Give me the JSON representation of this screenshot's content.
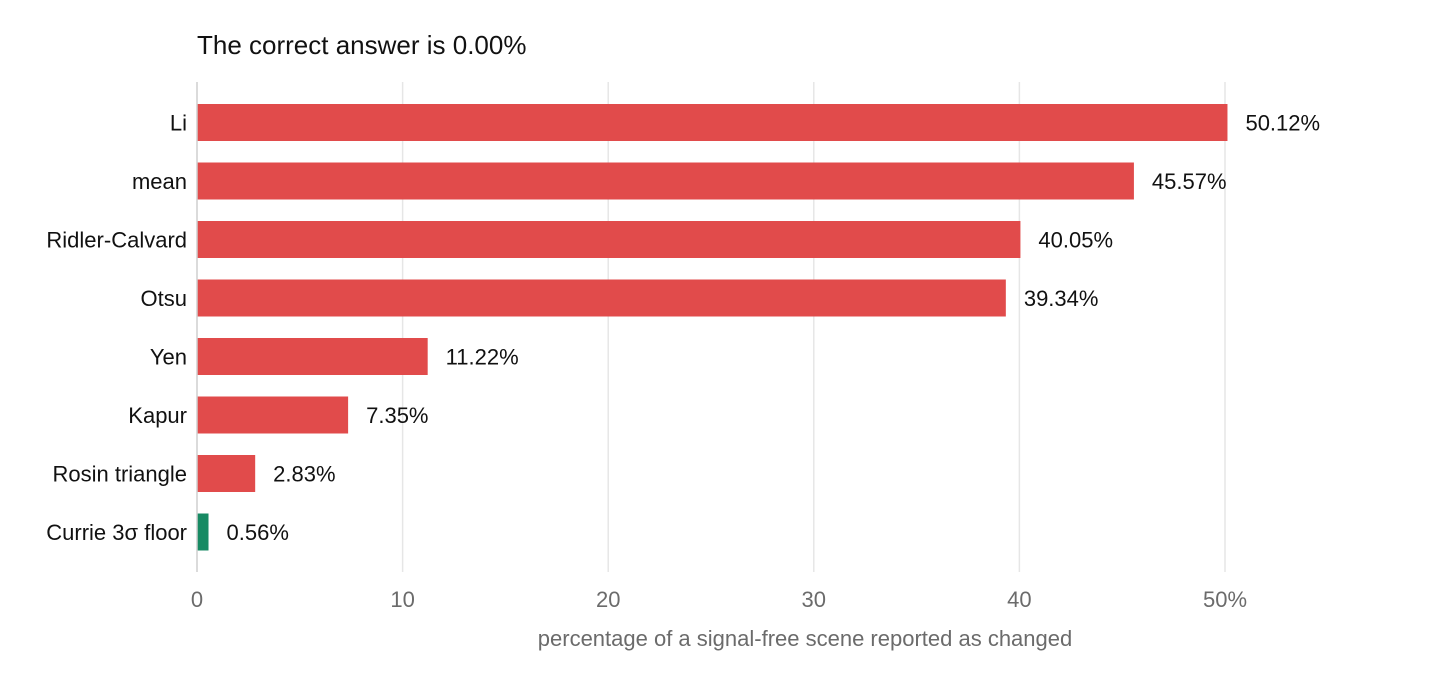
{
  "chart_data": {
    "type": "bar",
    "orientation": "horizontal",
    "title": "The correct answer is 0.00%",
    "xlabel": "percentage of a signal-free scene reported as changed",
    "ylabel": "",
    "xlim": [
      0,
      55
    ],
    "x_ticks": [
      0,
      10,
      20,
      30,
      40,
      50
    ],
    "x_tick_labels": [
      "0",
      "10",
      "20",
      "30",
      "40",
      "50%"
    ],
    "grid": "vertical",
    "legend": "none",
    "categories": [
      "Li",
      "mean",
      "Ridler-Calvard",
      "Otsu",
      "Yen",
      "Kapur",
      "Rosin triangle",
      "Currie 3σ floor"
    ],
    "values": [
      50.12,
      45.57,
      40.05,
      39.34,
      11.22,
      7.35,
      2.83,
      0.56
    ],
    "value_labels": [
      "50.12%",
      "45.57%",
      "40.05%",
      "39.34%",
      "11.22%",
      "7.35%",
      "2.83%",
      "0.56%"
    ],
    "colors": [
      "#e14b4b",
      "#e14b4b",
      "#e14b4b",
      "#e14b4b",
      "#e14b4b",
      "#e14b4b",
      "#e14b4b",
      "#178a63"
    ]
  }
}
